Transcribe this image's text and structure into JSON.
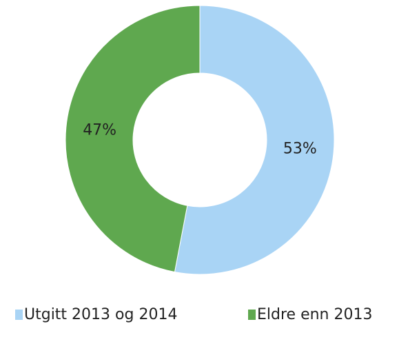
{
  "chart_data": {
    "type": "pie",
    "categories": [
      "Utgitt 2013 og 2014",
      "Eldre enn 2013"
    ],
    "values": [
      53,
      47
    ],
    "value_labels": [
      "53%",
      "47%"
    ],
    "colors": [
      "#a9d4f5",
      "#5fa84f"
    ],
    "donut": true
  }
}
